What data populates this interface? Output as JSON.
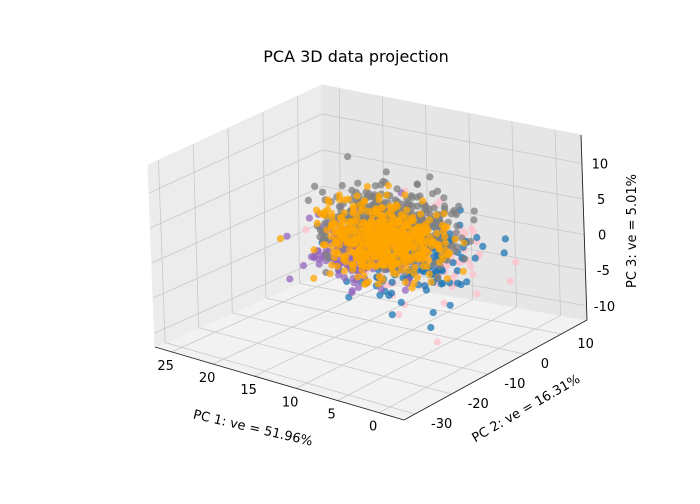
{
  "chart_data": {
    "type": "scatter",
    "title": "PCA 3D data projection",
    "xlabel": "PC 1: ve = 51.96%",
    "ylabel": "PC 2: ve = 16.31%",
    "zlabel": "PC 3: ve = 5.01%",
    "xticks": [
      "25",
      "20",
      "15",
      "10",
      "5",
      "0"
    ],
    "yticks": [
      "-30",
      "-20",
      "-10",
      "0",
      "10"
    ],
    "zticks": [
      "10",
      "5",
      "0",
      "-5",
      "-10"
    ],
    "xlim": [
      -3,
      27
    ],
    "ylim": [
      -33,
      17
    ],
    "zlim": [
      -12,
      14
    ],
    "grid": true,
    "series": [
      {
        "color": "#ffc0cb",
        "center": [
          8,
          -5,
          1
        ],
        "spread": [
          7,
          9,
          4
        ],
        "count": 220
      },
      {
        "color": "#1f77b4",
        "center": [
          6,
          -10,
          2
        ],
        "spread": [
          6,
          9,
          4
        ],
        "count": 200
      },
      {
        "color": "#9467bd",
        "center": [
          17,
          2,
          -3
        ],
        "spread": [
          5,
          5,
          4
        ],
        "count": 220
      },
      {
        "color": "#808080",
        "center": [
          11,
          -3,
          3
        ],
        "spread": [
          6,
          8,
          4
        ],
        "count": 500
      },
      {
        "color": "#ffa500",
        "center": [
          14,
          2,
          -1
        ],
        "spread": [
          6,
          6,
          4
        ],
        "count": 550
      }
    ]
  }
}
